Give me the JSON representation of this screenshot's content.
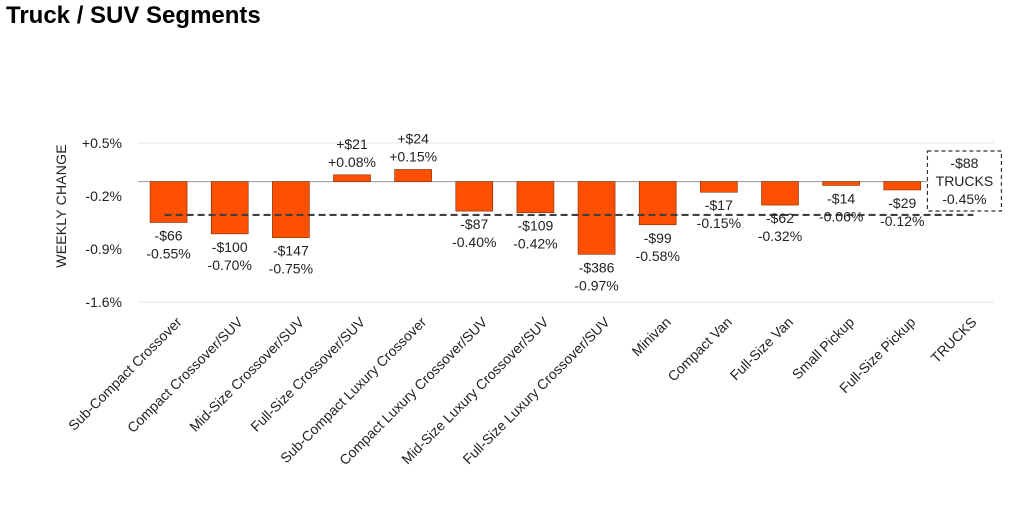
{
  "title": "Truck / SUV Segments",
  "chart_data": {
    "type": "bar",
    "title": "Truck / SUV Segments",
    "xlabel": "",
    "ylabel": "WEEKLY CHANGE",
    "ylim": [
      -1.6,
      0.5
    ],
    "yticks": [
      0.5,
      -0.2,
      -0.9,
      -1.6
    ],
    "ytick_labels": [
      "+0.5%",
      "-0.2%",
      "-0.9%",
      "-1.6%"
    ],
    "baseline": -0.01,
    "average_line": -0.45,
    "grid": false,
    "legend": "none",
    "bar_color": "#ff4f00",
    "categories": [
      "Sub-Compact Crossover",
      "Compact Crossover/SUV",
      "Mid-Size Crossover/SUV",
      "Full-Size Crossover/SUV",
      "Sub-Compact Luxury Crossover",
      "Compact Luxury Crossover/SUV",
      "Mid-Size Luxury Crossover/SUV",
      "Full-Size Luxury Crossover/SUV",
      "Minivan",
      "Compact Van",
      "Full-Size Van",
      "Small Pickup",
      "Full-Size Pickup",
      "TRUCKS"
    ],
    "values": [
      -0.55,
      -0.7,
      -0.75,
      0.08,
      0.15,
      -0.4,
      -0.42,
      -0.97,
      -0.58,
      -0.15,
      -0.32,
      -0.06,
      -0.12,
      -0.45
    ],
    "dollar_labels": [
      "-$66",
      "-$100",
      "-$147",
      "+$21",
      "+$24",
      "-$87",
      "-$109",
      "-$386",
      "-$99",
      "-$17",
      "-$62",
      "-$14",
      "-$29",
      "-$88"
    ],
    "pct_labels": [
      "-0.55%",
      "-0.70%",
      "-0.75%",
      "+0.08%",
      "+0.15%",
      "-0.40%",
      "-0.42%",
      "-0.97%",
      "-0.58%",
      "-0.15%",
      "-0.32%",
      "-0.06%",
      "-0.12%",
      "-0.45%"
    ],
    "summary_box": {
      "dollar": "-$88",
      "name": "TRUCKS",
      "pct": "-0.45%"
    }
  }
}
